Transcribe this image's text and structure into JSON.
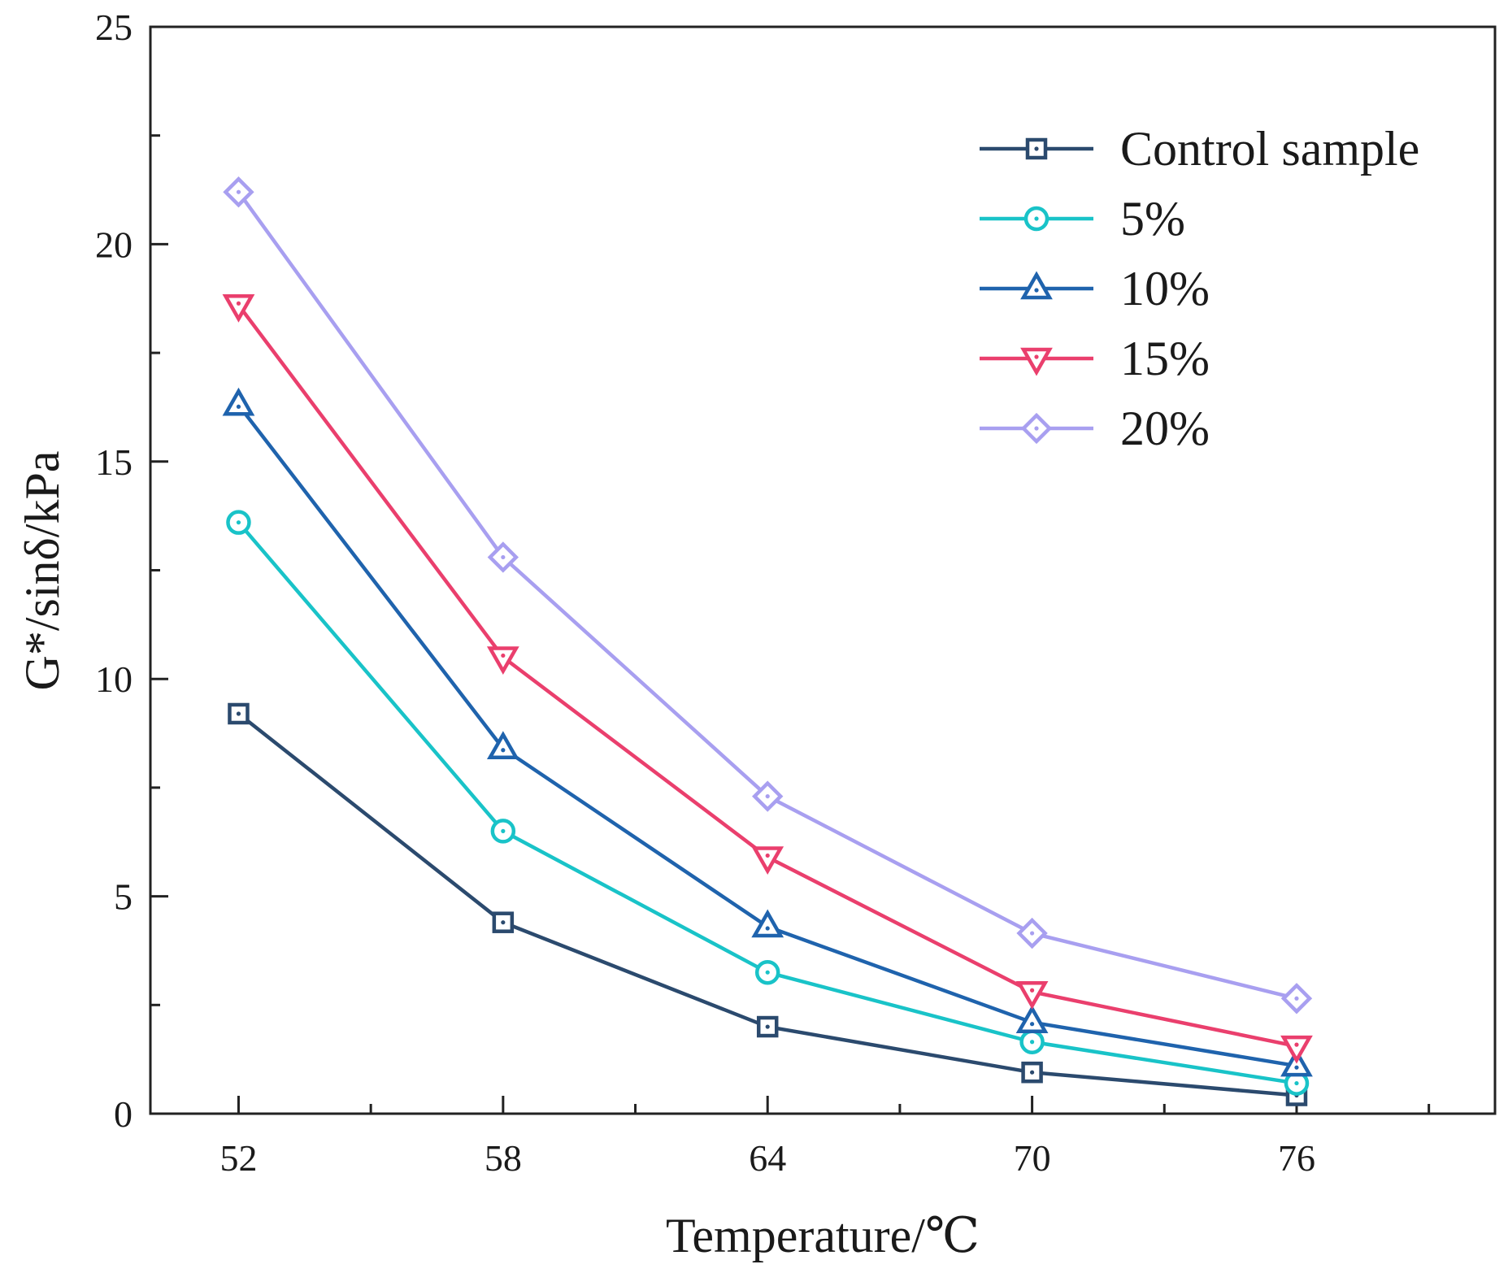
{
  "chart_data": {
    "type": "line",
    "title": "",
    "xlabel": "Temperature/℃",
    "ylabel": "G*/sinδ/kPa",
    "x": [
      52,
      58,
      64,
      70,
      76
    ],
    "x_tick_labels": [
      "52",
      "58",
      "64",
      "70",
      "76"
    ],
    "xlim": [
      50,
      80.5
    ],
    "y_ticks": [
      0,
      5,
      10,
      15,
      20,
      25
    ],
    "y_tick_labels": [
      "0",
      "5",
      "10",
      "15",
      "20",
      "25"
    ],
    "ylim": [
      0,
      25
    ],
    "grid": false,
    "legend_position": "top-right",
    "series": [
      {
        "name": "Control sample",
        "marker": "square",
        "color": "#2b4a6e",
        "values": [
          9.2,
          4.4,
          2.0,
          0.95,
          0.42
        ]
      },
      {
        "name": "5%",
        "marker": "circle",
        "color": "#19c3c8",
        "values": [
          13.6,
          6.5,
          3.25,
          1.65,
          0.7
        ]
      },
      {
        "name": "10%",
        "marker": "triangle-up",
        "color": "#1f63ad",
        "values": [
          16.3,
          8.4,
          4.3,
          2.1,
          1.1
        ]
      },
      {
        "name": "15%",
        "marker": "triangle-down",
        "color": "#ea3f6d",
        "values": [
          18.6,
          10.5,
          5.9,
          2.8,
          1.55
        ]
      },
      {
        "name": "20%",
        "marker": "diamond",
        "color": "#a89ff0",
        "values": [
          21.2,
          12.8,
          7.3,
          4.15,
          2.65
        ]
      }
    ]
  }
}
